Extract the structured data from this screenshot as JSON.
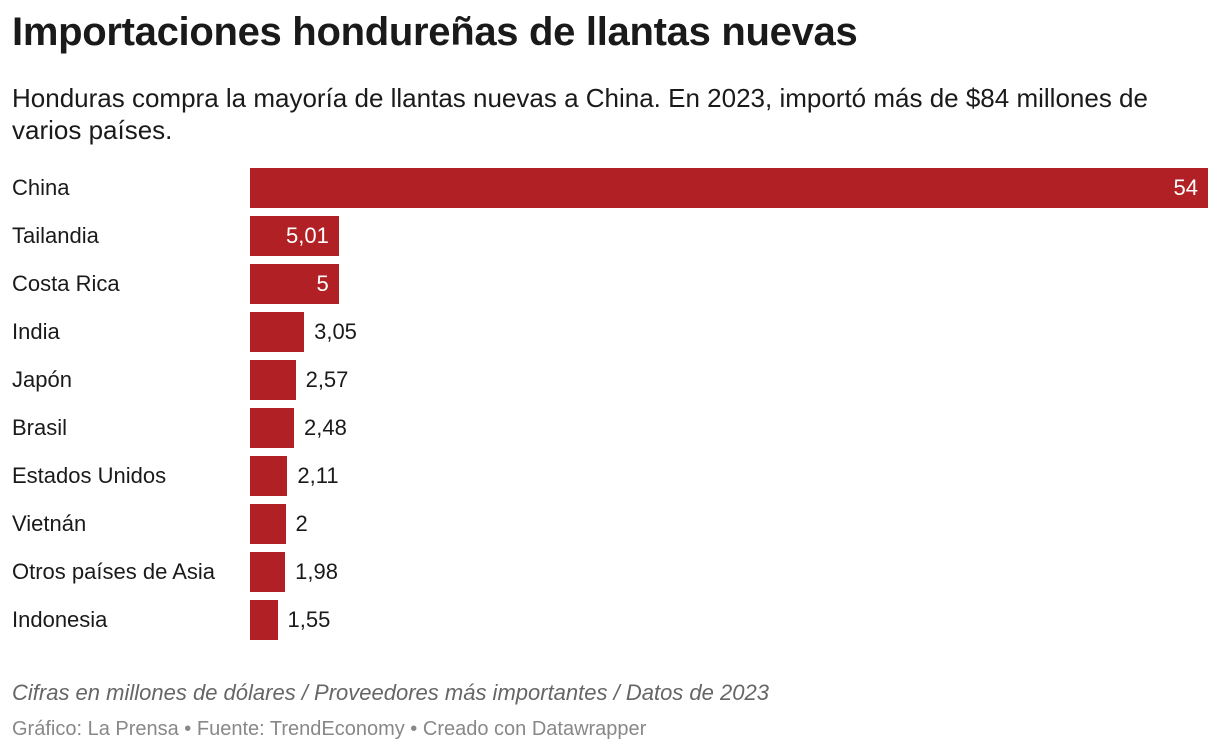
{
  "header": {
    "title": "Importaciones hondureñas de llantas nuevas",
    "subtitle": "Honduras compra la mayoría de llantas nuevas a China. En 2023, importó más de $84 millones de varios países."
  },
  "chart_data": {
    "type": "bar",
    "orientation": "horizontal",
    "title": "Importaciones hondureñas de llantas nuevas",
    "categories": [
      "China",
      "Tailandia",
      "Costa Rica",
      "India",
      "Japón",
      "Brasil",
      "Estados Unidos",
      "Vietnán",
      "Otros países de Asia",
      "Indonesia"
    ],
    "values": [
      54,
      5.01,
      5,
      3.05,
      2.57,
      2.48,
      2.11,
      2,
      1.98,
      1.55
    ],
    "value_labels": [
      "54",
      "5,01",
      "5",
      "3,05",
      "2,57",
      "2,48",
      "2,11",
      "2",
      "1,98",
      "1,55"
    ],
    "xlim": [
      0,
      54
    ],
    "bar_color": "#b02025",
    "grid": false,
    "legend": "none"
  },
  "notes": "Cifras en millones de dólares / Proveedores más importantes / Datos de 2023",
  "footer": "Gráfico: La Prensa • Fuente: TrendEconomy • Creado con Datawrapper"
}
